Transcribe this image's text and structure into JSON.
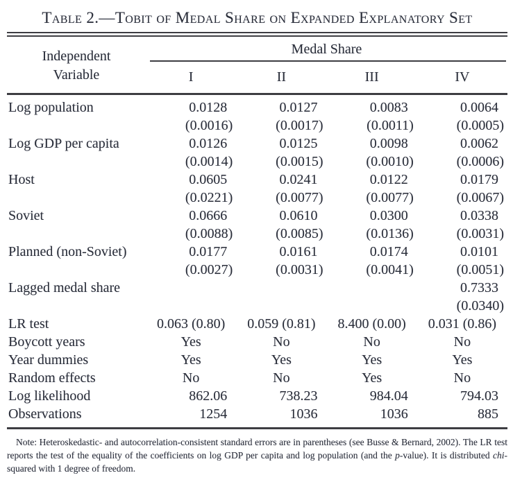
{
  "page": {
    "background_color": "#ffffff",
    "text_color": "#2b2f3a",
    "rule_color": "#3d3d42"
  },
  "table": {
    "title": "Table 2.—Tobit of Medal Share on Expanded Explanatory Set",
    "header": {
      "stub_line1": "Independent",
      "stub_line2": "Variable",
      "spanner": "Medal Share",
      "columns": [
        "I",
        "II",
        "III",
        "IV"
      ]
    },
    "rows": [
      {
        "label": "Log population",
        "values": [
          "0.0128",
          "0.0127",
          "0.0083",
          "0.0064"
        ]
      },
      {
        "label": "",
        "values": [
          "(0.0016)",
          "(0.0017)",
          "(0.0011)",
          "(0.0005)"
        ]
      },
      {
        "label": "Log GDP per capita",
        "values": [
          "0.0126",
          "0.0125",
          "0.0098",
          "0.0062"
        ]
      },
      {
        "label": "",
        "values": [
          "(0.0014)",
          "(0.0015)",
          "(0.0010)",
          "(0.0006)"
        ]
      },
      {
        "label": "Host",
        "values": [
          "0.0605",
          "0.0241",
          "0.0122",
          "0.0179"
        ]
      },
      {
        "label": "",
        "values": [
          "(0.0221)",
          "(0.0077)",
          "(0.0077)",
          "(0.0067)"
        ]
      },
      {
        "label": "Soviet",
        "values": [
          "0.0666",
          "0.0610",
          "0.0300",
          "0.0338"
        ]
      },
      {
        "label": "",
        "values": [
          "(0.0088)",
          "(0.0085)",
          "(0.0136)",
          "(0.0031)"
        ]
      },
      {
        "label": "Planned (non-Soviet)",
        "values": [
          "0.0177",
          "0.0161",
          "0.0174",
          "0.0101"
        ]
      },
      {
        "label": "",
        "values": [
          "(0.0027)",
          "(0.0031)",
          "(0.0041)",
          "(0.0051)"
        ]
      },
      {
        "label": "Lagged medal share",
        "values": [
          "",
          "",
          "",
          "0.7333"
        ]
      },
      {
        "label": "",
        "values": [
          "",
          "",
          "",
          "(0.0340)"
        ]
      },
      {
        "label": "LR test",
        "values": [
          "0.063 (0.80)",
          "0.059 (0.81)",
          "8.400 (0.00)",
          "0.031 (0.86)"
        ]
      },
      {
        "label": "Boycott years",
        "values": [
          "Yes",
          "No",
          "No",
          "No"
        ]
      },
      {
        "label": "Year dummies",
        "values": [
          "Yes",
          "Yes",
          "Yes",
          "Yes"
        ]
      },
      {
        "label": "Random effects",
        "values": [
          "No",
          "No",
          "Yes",
          "No"
        ]
      },
      {
        "label": "Log likelihood",
        "values": [
          "862.06",
          "738.23",
          "984.04",
          "794.03"
        ]
      },
      {
        "label": "Observations",
        "values": [
          "1254",
          "1036",
          "1036",
          "885"
        ]
      }
    ]
  },
  "note": {
    "part1": "Note: Heteroskedastic- and autocorrelation-consistent standard errors are in parentheses (see Busse & Bernard, 2002). The LR test reports the test of the equality of the coefficients on log GDP per capita and log population (and the ",
    "italic1": "p",
    "part2": "-value). It is distributed ",
    "italic2": "chi",
    "part3": "-squared with 1 degree of freedom."
  }
}
